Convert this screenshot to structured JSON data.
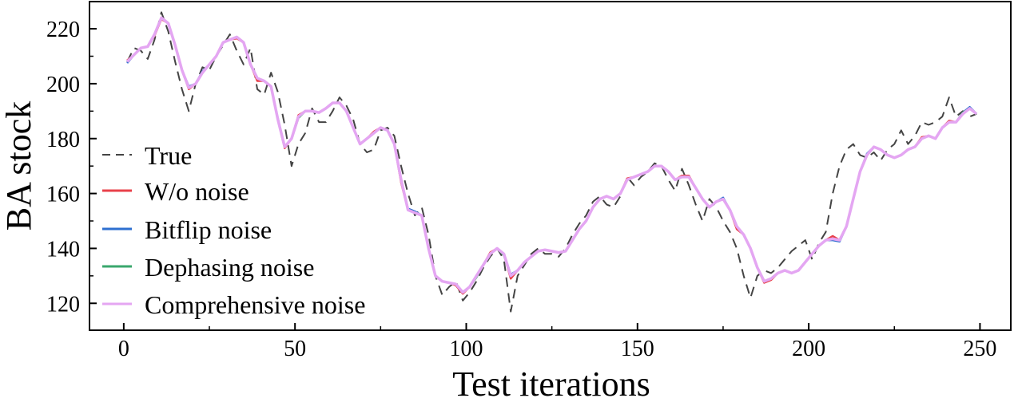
{
  "chart_data": {
    "type": "line",
    "title": "",
    "xlabel": "Test iterations",
    "ylabel": "BA stock",
    "xlim": [
      -10,
      259
    ],
    "ylim": [
      110.2,
      229.9
    ],
    "xticks": [
      0,
      50,
      100,
      150,
      200,
      250
    ],
    "xtick_labels": [
      "0",
      "50",
      "100",
      "150",
      "200",
      "250"
    ],
    "yticks": [
      120,
      140,
      160,
      180,
      200,
      220
    ],
    "ytick_labels": [
      "120",
      "140",
      "160",
      "180",
      "200",
      "220"
    ],
    "grid": false,
    "legend_position": "lower-left",
    "x": {
      "start": 1,
      "step": 2,
      "count": 125
    },
    "series": [
      {
        "name": "True",
        "color": "#444444",
        "dashed": true,
        "values": [
          208,
          213,
          212,
          209,
          216,
          226,
          219,
          208,
          198,
          190,
          200,
          206,
          205,
          210,
          214,
          218,
          212,
          207,
          213,
          198,
          196,
          204,
          197,
          185,
          170,
          178,
          182,
          191,
          186,
          186,
          190,
          195,
          192,
          187,
          178,
          175,
          176,
          183,
          184,
          181,
          170,
          160,
          152,
          155,
          145,
          130,
          123,
          126,
          128,
          121,
          124,
          128,
          133,
          137,
          140,
          136,
          117,
          130,
          134,
          138,
          140,
          138,
          138,
          137,
          140,
          145,
          149,
          152,
          157,
          159,
          156,
          155,
          159,
          166,
          163,
          166,
          168,
          171,
          170,
          165,
          161,
          169,
          163,
          156,
          150,
          158,
          155,
          150,
          146,
          140,
          130,
          122,
          130,
          132,
          131,
          133,
          136,
          139,
          141,
          143,
          136,
          142,
          146,
          160,
          170,
          176,
          178,
          174,
          173,
          175,
          172,
          176,
          178,
          183,
          178,
          181,
          186,
          185,
          186,
          188,
          195,
          188,
          190,
          188,
          189
        ]
      },
      {
        "name": "W/o noise",
        "color": "#e8414a",
        "dashed": false,
        "values": [
          208.5,
          210.5,
          213,
          213.5,
          217.5,
          223.5,
          222,
          214,
          205,
          198,
          200,
          204,
          207,
          210,
          215,
          216,
          216.5,
          215,
          207,
          201,
          201,
          199,
          187,
          176.5,
          180,
          188.5,
          190,
          190,
          189.5,
          191,
          193,
          193,
          190,
          184,
          178,
          180,
          182.5,
          184,
          183,
          178,
          164,
          154,
          153,
          152,
          140,
          130,
          128,
          127.5,
          126.5,
          123.5,
          126,
          130,
          134,
          138.5,
          140,
          138,
          129,
          132,
          135,
          137,
          139,
          139.5,
          139,
          138.5,
          139,
          143,
          147,
          150,
          155,
          158,
          159,
          158,
          160,
          165.5,
          166,
          167,
          168,
          170,
          170,
          168,
          165,
          166.5,
          166.5,
          162,
          158,
          155,
          157,
          158,
          154,
          147,
          145,
          140,
          133,
          127.5,
          128.5,
          131,
          132,
          131,
          132,
          135,
          138,
          141,
          143,
          144.5,
          143,
          148,
          158,
          168,
          174,
          177,
          176,
          174,
          173,
          174,
          176,
          177,
          180.5,
          181,
          180,
          184,
          186.5,
          186,
          189,
          191,
          189
        ]
      },
      {
        "name": "Bitflip noise",
        "color": "#2e6fd0",
        "dashed": false,
        "values": [
          207.5,
          210.5,
          213,
          213.5,
          218,
          224,
          222,
          214,
          205,
          199,
          200,
          204.5,
          207,
          210,
          215,
          216,
          217,
          215,
          207,
          202,
          201,
          199,
          187.5,
          177,
          180,
          188,
          190,
          190,
          189.5,
          191,
          193,
          193,
          190,
          184,
          178,
          180,
          182,
          184,
          183,
          178,
          165,
          154.5,
          153.5,
          152,
          140,
          130,
          128,
          127.5,
          127,
          124,
          126,
          130,
          134,
          138,
          140,
          138,
          130.5,
          132,
          135,
          137,
          139,
          139.5,
          139,
          138.5,
          139,
          143,
          147,
          150,
          155,
          158,
          159,
          158,
          160,
          165,
          166,
          167,
          168,
          170,
          170,
          168,
          165,
          166,
          166,
          162,
          158,
          155,
          157,
          158.5,
          154,
          148,
          145,
          140,
          133,
          128,
          129,
          131,
          132,
          131,
          132,
          135,
          138,
          141,
          143,
          143,
          142.5,
          148,
          158,
          168,
          174.5,
          177,
          176,
          174,
          173,
          174,
          176,
          177,
          180,
          181,
          180,
          184,
          186,
          186,
          189.5,
          191.5,
          189
        ]
      },
      {
        "name": "Dephasing noise",
        "color": "#3aa76d",
        "dashed": false,
        "values": [
          208,
          210.5,
          213,
          213.5,
          218,
          224,
          222,
          214,
          205,
          198.5,
          200,
          204,
          207,
          210,
          215,
          216,
          217,
          215,
          207,
          202,
          201,
          199,
          187,
          177,
          180,
          187.5,
          190,
          190,
          189.5,
          191,
          193,
          193,
          190,
          184,
          178,
          180,
          182,
          184,
          183,
          178,
          165,
          154,
          153,
          152,
          140,
          130,
          128,
          127.5,
          127,
          124,
          126,
          129.5,
          134,
          138,
          140,
          137.5,
          130,
          132,
          135,
          137,
          139,
          139.5,
          139,
          138.5,
          139,
          143,
          147,
          150,
          155,
          158,
          159,
          158,
          160,
          165,
          166,
          167,
          168,
          170,
          170,
          168,
          165,
          166,
          166,
          162,
          158,
          155,
          157,
          158,
          154,
          148,
          145,
          140,
          133,
          128,
          129,
          131,
          132,
          131,
          132,
          135,
          138,
          141,
          143,
          143.5,
          143,
          148,
          158,
          168,
          174,
          177,
          176,
          174,
          173,
          174,
          176,
          177,
          180,
          181,
          180,
          184,
          186,
          186,
          189.5,
          191,
          189
        ]
      },
      {
        "name": "Comprehensive noise",
        "color": "#e4a6f2",
        "dashed": false,
        "values": [
          208,
          210.5,
          213,
          213.5,
          218,
          224,
          222,
          214,
          205,
          198.5,
          200,
          204,
          207,
          210,
          215,
          216,
          217,
          215,
          207,
          202,
          201,
          199,
          187,
          177,
          180,
          188,
          190,
          190,
          189.5,
          191,
          193,
          193,
          190,
          184,
          178,
          180,
          182,
          184,
          183,
          178,
          165,
          154,
          153,
          152,
          140,
          130,
          128,
          127.5,
          127,
          124,
          126,
          130,
          134,
          138,
          140,
          138,
          130,
          132,
          135,
          137,
          139,
          139.5,
          139,
          138.5,
          139,
          143,
          147,
          150,
          155,
          158,
          159,
          158,
          160,
          165,
          166,
          167,
          168,
          170,
          170,
          168,
          165,
          166,
          166,
          162,
          158,
          155,
          157,
          158,
          154,
          148,
          145,
          140,
          133,
          128,
          129,
          131,
          132,
          131,
          132,
          135,
          138,
          141,
          143,
          143.5,
          143,
          148,
          158,
          168,
          174,
          177,
          176,
          174,
          173,
          174,
          176,
          177,
          180,
          181,
          180,
          184,
          186,
          186,
          189,
          191,
          189
        ]
      }
    ]
  }
}
